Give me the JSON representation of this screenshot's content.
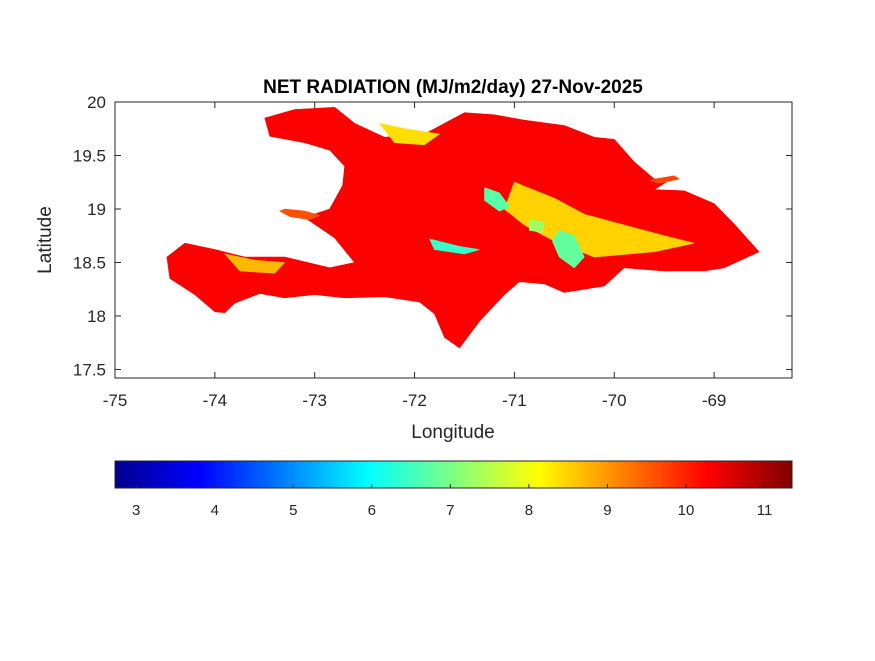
{
  "chart_data": {
    "type": "heatmap",
    "title": "NET RADIATION (MJ/m2/day) 27-Nov-2025",
    "xlabel": "Longitude",
    "ylabel": "Latitude",
    "xlim": [
      -75,
      -68.22
    ],
    "ylim": [
      17.42,
      20.0
    ],
    "x_ticks": [
      -75,
      -74,
      -73,
      -72,
      -71,
      -70,
      -69
    ],
    "x_tick_labels": [
      "-75",
      "-74",
      "-73",
      "-72",
      "-71",
      "-70",
      "-69"
    ],
    "y_ticks": [
      17.5,
      18,
      18.5,
      19,
      19.5,
      20
    ],
    "y_tick_labels": [
      "17.5",
      "18",
      "18.5",
      "19",
      "19.5",
      "20"
    ],
    "colorbar": {
      "colormap": "jet",
      "range": [
        2.73,
        11.35
      ],
      "ticks": [
        3,
        4,
        5,
        6,
        7,
        8,
        9,
        10,
        11
      ],
      "tick_labels": [
        "3",
        "4",
        "5",
        "6",
        "7",
        "8",
        "9",
        "10",
        "11"
      ],
      "placement": "bottom"
    },
    "grid": false,
    "regions": [
      {
        "value": 10.3,
        "outline": [
          [
            -73.5,
            19.85
          ],
          [
            -73.2,
            19.93
          ],
          [
            -72.8,
            19.95
          ],
          [
            -72.6,
            19.8
          ],
          [
            -72.3,
            19.67
          ],
          [
            -71.9,
            19.7
          ],
          [
            -71.5,
            19.9
          ],
          [
            -71.2,
            19.88
          ],
          [
            -70.9,
            19.83
          ],
          [
            -70.5,
            19.78
          ],
          [
            -70.2,
            19.67
          ],
          [
            -70.0,
            19.65
          ],
          [
            -69.8,
            19.44
          ],
          [
            -69.6,
            19.28
          ],
          [
            -69.4,
            19.3
          ],
          [
            -69.6,
            19.18
          ],
          [
            -69.3,
            19.17
          ],
          [
            -69.0,
            19.05
          ],
          [
            -68.8,
            18.86
          ],
          [
            -68.55,
            18.6
          ],
          [
            -68.9,
            18.45
          ],
          [
            -69.1,
            18.42
          ],
          [
            -69.5,
            18.42
          ],
          [
            -69.9,
            18.45
          ],
          [
            -70.1,
            18.28
          ],
          [
            -70.5,
            18.22
          ],
          [
            -70.7,
            18.3
          ],
          [
            -70.95,
            18.32
          ],
          [
            -71.1,
            18.2
          ],
          [
            -71.35,
            17.95
          ],
          [
            -71.55,
            17.7
          ],
          [
            -71.7,
            17.8
          ],
          [
            -71.8,
            18.02
          ],
          [
            -71.95,
            18.13
          ],
          [
            -72.3,
            18.18
          ],
          [
            -72.7,
            18.17
          ],
          [
            -73.0,
            18.2
          ],
          [
            -73.3,
            18.17
          ],
          [
            -73.55,
            18.21
          ],
          [
            -73.8,
            18.12
          ],
          [
            -73.9,
            18.03
          ],
          [
            -74.0,
            18.04
          ],
          [
            -74.2,
            18.2
          ],
          [
            -74.45,
            18.35
          ],
          [
            -74.48,
            18.55
          ],
          [
            -74.3,
            18.68
          ],
          [
            -74.0,
            18.62
          ],
          [
            -73.7,
            18.55
          ],
          [
            -73.3,
            18.55
          ],
          [
            -72.85,
            18.45
          ],
          [
            -72.6,
            18.5
          ],
          [
            -72.8,
            18.73
          ],
          [
            -73.1,
            18.92
          ],
          [
            -72.85,
            19.0
          ],
          [
            -72.72,
            19.22
          ],
          [
            -72.7,
            19.4
          ],
          [
            -72.85,
            19.55
          ],
          [
            -73.1,
            19.62
          ],
          [
            -73.45,
            19.68
          ],
          [
            -73.5,
            19.85
          ]
        ]
      },
      {
        "value": 9.6,
        "outline": [
          [
            -73.3,
            19.0
          ],
          [
            -73.1,
            18.98
          ],
          [
            -72.95,
            18.94
          ],
          [
            -73.05,
            18.9
          ],
          [
            -73.25,
            18.93
          ],
          [
            -73.35,
            18.98
          ],
          [
            -73.3,
            19.0
          ]
        ]
      },
      {
        "value": 9.7,
        "outline": [
          [
            -69.65,
            19.27
          ],
          [
            -69.4,
            19.31
          ],
          [
            -69.35,
            19.28
          ],
          [
            -69.55,
            19.24
          ],
          [
            -69.65,
            19.27
          ]
        ]
      },
      {
        "value": 8.5,
        "outline": [
          [
            -71.0,
            19.25
          ],
          [
            -70.6,
            19.1
          ],
          [
            -70.3,
            18.95
          ],
          [
            -69.9,
            18.85
          ],
          [
            -69.5,
            18.75
          ],
          [
            -69.2,
            18.68
          ],
          [
            -69.6,
            18.6
          ],
          [
            -70.2,
            18.55
          ],
          [
            -70.6,
            18.7
          ],
          [
            -70.9,
            18.85
          ],
          [
            -71.1,
            19.0
          ],
          [
            -71.0,
            19.25
          ]
        ]
      },
      {
        "value": 8.7,
        "outline": [
          [
            -73.9,
            18.58
          ],
          [
            -73.6,
            18.52
          ],
          [
            -73.3,
            18.5
          ],
          [
            -73.4,
            18.4
          ],
          [
            -73.75,
            18.42
          ],
          [
            -73.9,
            18.58
          ]
        ]
      },
      {
        "value": 8.4,
        "outline": [
          [
            -72.35,
            19.8
          ],
          [
            -72.1,
            19.75
          ],
          [
            -71.75,
            19.7
          ],
          [
            -71.9,
            19.6
          ],
          [
            -72.2,
            19.62
          ],
          [
            -72.35,
            19.8
          ]
        ]
      },
      {
        "value": 6.8,
        "outline": [
          [
            -70.55,
            18.8
          ],
          [
            -70.4,
            18.75
          ],
          [
            -70.3,
            18.55
          ],
          [
            -70.4,
            18.45
          ],
          [
            -70.55,
            18.55
          ],
          [
            -70.62,
            18.7
          ],
          [
            -70.55,
            18.8
          ]
        ]
      },
      {
        "value": 6.4,
        "outline": [
          [
            -71.85,
            18.72
          ],
          [
            -71.55,
            18.65
          ],
          [
            -71.35,
            18.62
          ],
          [
            -71.5,
            18.58
          ],
          [
            -71.8,
            18.62
          ],
          [
            -71.85,
            18.72
          ]
        ]
      },
      {
        "value": 6.7,
        "outline": [
          [
            -71.3,
            19.2
          ],
          [
            -71.15,
            19.15
          ],
          [
            -71.05,
            19.02
          ],
          [
            -71.15,
            18.98
          ],
          [
            -71.3,
            19.08
          ],
          [
            -71.3,
            19.2
          ]
        ]
      },
      {
        "value": 7.3,
        "outline": [
          [
            -70.85,
            18.9
          ],
          [
            -70.7,
            18.88
          ],
          [
            -70.72,
            18.78
          ],
          [
            -70.85,
            18.8
          ],
          [
            -70.85,
            18.9
          ]
        ]
      }
    ]
  }
}
